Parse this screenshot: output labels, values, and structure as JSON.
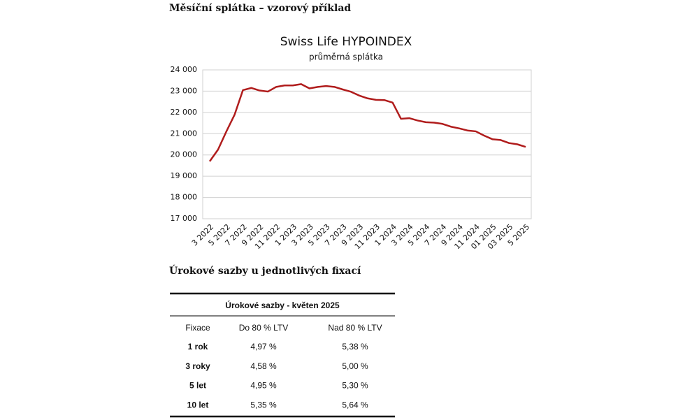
{
  "heading1": "Měsíční splátka – vzorový příklad",
  "chart_data": {
    "type": "line",
    "title": "Swiss Life HYPOINDEX",
    "subtitle": "průměrná splátka",
    "categories": [
      "3 2022",
      null,
      "5 2022",
      null,
      "7 2022",
      null,
      "9 2022",
      null,
      "11 2022",
      null,
      "1 2023",
      null,
      "3 2023",
      null,
      "5 2023",
      null,
      "7 2023",
      null,
      "9 2023",
      null,
      "11 2023",
      null,
      "1 2024",
      null,
      "3 2024",
      null,
      "5 2024",
      null,
      "7 2024",
      null,
      "9 2024",
      null,
      "11 2024",
      null,
      "01 2025",
      null,
      "03 2025",
      null,
      "5 2025"
    ],
    "series": [
      {
        "name": "průměrná splátka",
        "color": "#b01c1c",
        "values": [
          19700,
          20250,
          21100,
          21900,
          23050,
          23150,
          23030,
          22980,
          23200,
          23270,
          23270,
          23330,
          23130,
          23200,
          23240,
          23200,
          23080,
          22970,
          22790,
          22660,
          22590,
          22580,
          22460,
          21700,
          21730,
          21620,
          21540,
          21520,
          21460,
          21330,
          21250,
          21150,
          21110,
          20910,
          20740,
          20700,
          20560,
          20500,
          20380
        ]
      }
    ],
    "ylim": [
      17000,
      24000
    ],
    "yticks": [
      {
        "value": 17000,
        "label": "17 000"
      },
      {
        "value": 18000,
        "label": "18 000"
      },
      {
        "value": 19000,
        "label": "19 000"
      },
      {
        "value": 20000,
        "label": "20 000"
      },
      {
        "value": 21000,
        "label": "21 000"
      },
      {
        "value": 22000,
        "label": "22 000"
      },
      {
        "value": 23000,
        "label": "23 000"
      },
      {
        "value": 24000,
        "label": "24 000"
      }
    ],
    "grid": true
  },
  "heading2": "Úrokové sazby u jednotlivých fixací",
  "table": {
    "title": "Úrokové sazby - květen 2025",
    "header": [
      "Fixace",
      "Do 80 % LTV",
      "Nad 80 % LTV"
    ],
    "rows": [
      [
        "1 rok",
        "4,97 %",
        "5,38 %"
      ],
      [
        "3 roky",
        "4,58 %",
        "5,00 %"
      ],
      [
        "5 let",
        "4,95 %",
        "5,30 %"
      ],
      [
        "10 let",
        "5,35 %",
        "5,64 %"
      ]
    ]
  }
}
